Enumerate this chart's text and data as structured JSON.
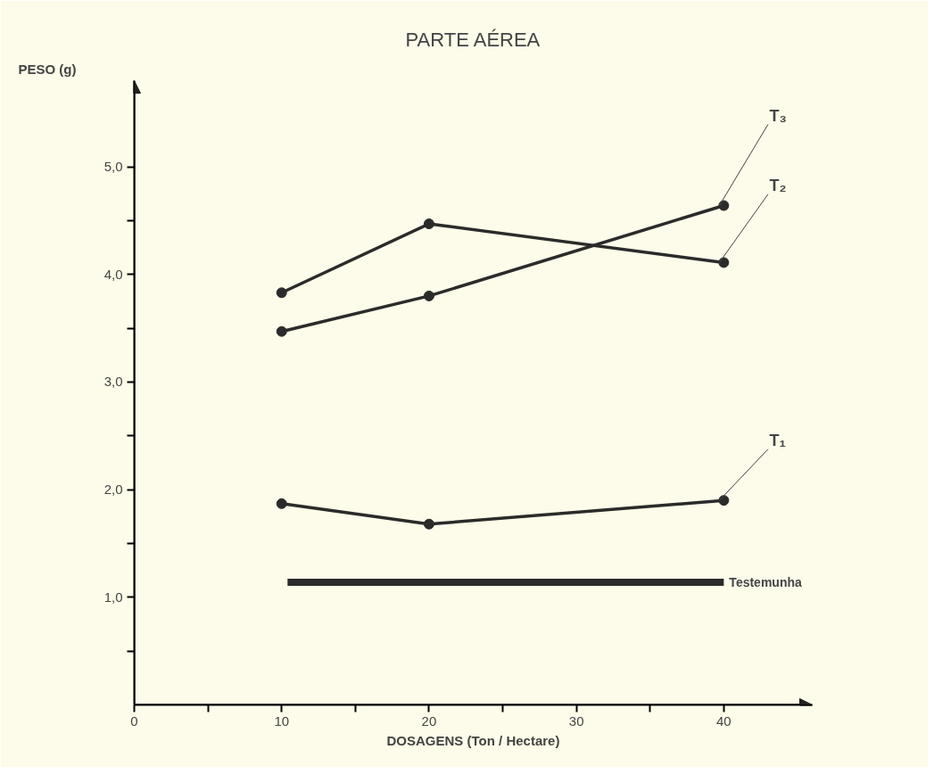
{
  "chart_data": {
    "type": "line",
    "title": "PARTE AÉREA",
    "xlabel": "DOSAGENS (Ton / Hectare)",
    "ylabel": "PESO (g)",
    "x": [
      10,
      20,
      40
    ],
    "series": [
      {
        "name": "T₃",
        "color": "#2b2b2b",
        "values": [
          3.47,
          3.8,
          4.64
        ]
      },
      {
        "name": "T₂",
        "color": "#2b2b2b",
        "values": [
          3.83,
          4.47,
          4.11
        ]
      },
      {
        "name": "T₁",
        "color": "#2b2b2b",
        "values": [
          1.87,
          1.68,
          1.9
        ]
      },
      {
        "name": "Testemunha",
        "color": "#2b2b2b",
        "x": [
          10.4,
          40
        ],
        "values": [
          1.14,
          1.14
        ],
        "marker": "none"
      }
    ],
    "marker": "circle",
    "line_style": "solid",
    "grid": false,
    "xlim": [
      0,
      46
    ],
    "xticks": [
      0,
      {
        "value": 5,
        "label": null
      },
      10,
      {
        "value": 15,
        "label": null
      },
      20,
      {
        "value": 25,
        "label": null
      },
      30,
      {
        "value": 35,
        "label": null
      },
      40
    ],
    "ylim": [
      0,
      5.8
    ],
    "yticks": [
      {
        "value": 0.5,
        "label": null
      },
      {
        "value": 1,
        "label": "1,0"
      },
      {
        "value": 1.5,
        "label": null
      },
      {
        "value": 2,
        "label": "2,0"
      },
      {
        "value": 2.5,
        "label": null
      },
      {
        "value": 3,
        "label": "3,0"
      },
      {
        "value": 3.5,
        "label": null
      },
      {
        "value": 4,
        "label": "4,0"
      },
      {
        "value": 4.5,
        "label": null
      },
      {
        "value": 5,
        "label": "5,0"
      }
    ]
  }
}
